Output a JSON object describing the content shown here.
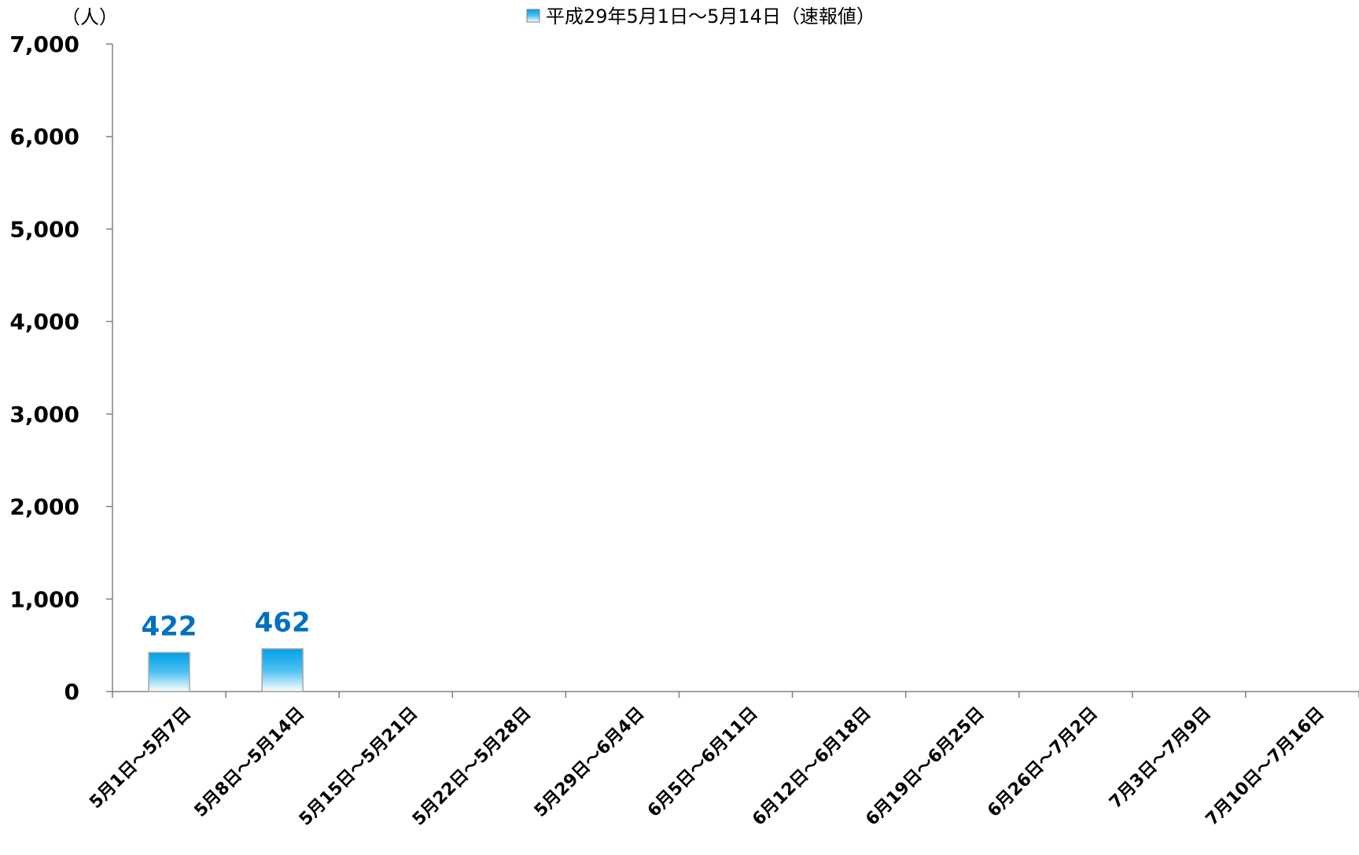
{
  "chart_data": {
    "type": "bar",
    "unit_label": "（人）",
    "categories": [
      "5月1日～5月7日",
      "5月8日～5月14日",
      "5月15日～5月21日",
      "5月22日～5月28日",
      "5月29日～6月4日",
      "6月5日～6月11日",
      "6月12日～6月18日",
      "6月19日～6月25日",
      "6月26日～7月2日",
      "7月3日～7月9日",
      "7月10日～7月16日"
    ],
    "series": [
      {
        "name": "平成29年5月1日～5月14日（速報値）",
        "values": [
          422,
          462,
          null,
          null,
          null,
          null,
          null,
          null,
          null,
          null,
          null
        ],
        "data_labels": [
          "422",
          "462"
        ],
        "color_top": "#00a0e9",
        "color_bottom": "#ffffff",
        "label_color": "#0070c0"
      }
    ],
    "ylim": [
      0,
      7000
    ],
    "yticks": [
      0,
      1000,
      2000,
      3000,
      4000,
      5000,
      6000,
      7000
    ],
    "ytick_labels": [
      "0",
      "1,000",
      "2,000",
      "3,000",
      "4,000",
      "5,000",
      "6,000",
      "7,000"
    ],
    "grid": false,
    "legend_position": "top-center"
  }
}
